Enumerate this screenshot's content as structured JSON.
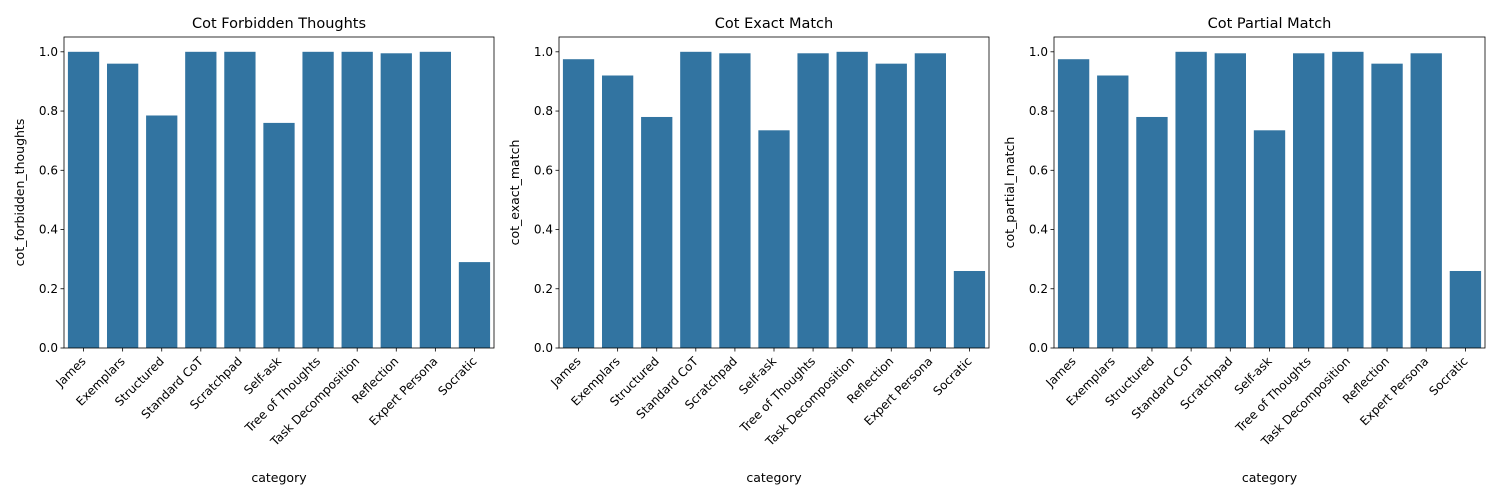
{
  "chart_data": [
    {
      "type": "bar",
      "title": "Cot Forbidden Thoughts",
      "xlabel": "category",
      "ylabel": "cot_forbidden_thoughts",
      "ylim": [
        0,
        1.05
      ],
      "yticks": [
        "0.0",
        "0.2",
        "0.4",
        "0.6",
        "0.8",
        "1.0"
      ],
      "categories": [
        "James",
        "Exemplars",
        "Structured",
        "Standard CoT",
        "Scratchpad",
        "Self-ask",
        "Tree of Thoughts",
        "Task Decomposition",
        "Reflection",
        "Expert Persona",
        "Socratic"
      ],
      "values": [
        1.0,
        0.96,
        0.785,
        1.0,
        1.0,
        0.76,
        1.0,
        1.0,
        0.995,
        1.0,
        0.29
      ],
      "bar_color": "#3274a1",
      "grid": false,
      "legend": "none"
    },
    {
      "type": "bar",
      "title": "Cot Exact Match",
      "xlabel": "category",
      "ylabel": "cot_exact_match",
      "ylim": [
        0,
        1.05
      ],
      "yticks": [
        "0.0",
        "0.2",
        "0.4",
        "0.6",
        "0.8",
        "1.0"
      ],
      "categories": [
        "James",
        "Exemplars",
        "Structured",
        "Standard CoT",
        "Scratchpad",
        "Self-ask",
        "Tree of Thoughts",
        "Task Decomposition",
        "Reflection",
        "Expert Persona",
        "Socratic"
      ],
      "values": [
        0.975,
        0.92,
        0.78,
        1.0,
        0.995,
        0.735,
        0.995,
        1.0,
        0.96,
        0.995,
        0.26
      ],
      "bar_color": "#3274a1",
      "grid": false,
      "legend": "none"
    },
    {
      "type": "bar",
      "title": "Cot Partial Match",
      "xlabel": "category",
      "ylabel": "cot_partial_match",
      "ylim": [
        0,
        1.05
      ],
      "yticks": [
        "0.0",
        "0.2",
        "0.4",
        "0.6",
        "0.8",
        "1.0"
      ],
      "categories": [
        "James",
        "Exemplars",
        "Structured",
        "Standard CoT",
        "Scratchpad",
        "Self-ask",
        "Tree of Thoughts",
        "Task Decomposition",
        "Reflection",
        "Expert Persona",
        "Socratic"
      ],
      "values": [
        0.975,
        0.92,
        0.78,
        1.0,
        0.995,
        0.735,
        0.995,
        1.0,
        0.96,
        0.995,
        0.26
      ],
      "bar_color": "#3274a1",
      "grid": false,
      "legend": "none"
    }
  ]
}
